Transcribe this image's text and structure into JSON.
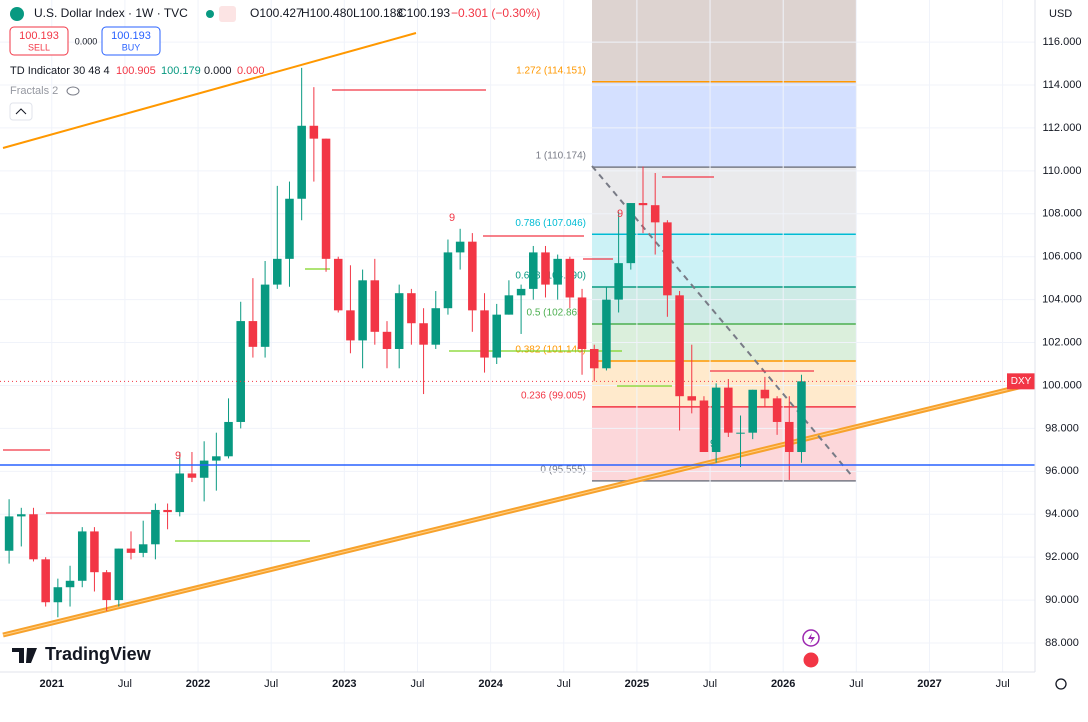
{
  "header": {
    "symbol": "U.S. Dollar Index · 1W · TVC",
    "ohlc": [
      "O100.427",
      "H100.480",
      "L100.188",
      "C100.193",
      "−0.301 (−0.30%)"
    ],
    "sell_price": "100.193",
    "sell_label": "SELL",
    "spread": "0.000",
    "buy_price": "100.193",
    "buy_label": "BUY",
    "indicator": "TD Indicator 30 48 4",
    "indicator_values": [
      "100.905",
      "100.179",
      "0.000",
      "0.000"
    ],
    "fractals": "Fractals 2",
    "watermark": "TradingView"
  },
  "chart_data": {
    "type": "candlestick",
    "currency": "USD",
    "up_color": "#089981",
    "down_color": "#f23645",
    "grid": true,
    "grid_color": "#f0f3fa",
    "x": [
      "2020-09",
      "2020-10",
      "2020-11",
      "2020-12",
      "2021-01",
      "2021-02",
      "2021-03",
      "2021-04",
      "2021-05",
      "2021-06",
      "2021-07",
      "2021-08",
      "2021-09",
      "2021-10",
      "2021-11",
      "2021-12",
      "2022-01",
      "2022-02",
      "2022-03",
      "2022-04",
      "2022-05",
      "2022-06",
      "2022-07",
      "2022-08",
      "2022-09",
      "2022-10",
      "2022-11",
      "2022-12",
      "2023-01",
      "2023-02",
      "2023-03",
      "2023-04",
      "2023-05",
      "2023-06",
      "2023-07",
      "2023-08",
      "2023-09",
      "2023-10",
      "2023-11",
      "2023-12",
      "2024-01",
      "2024-02",
      "2024-03",
      "2024-04",
      "2024-05",
      "2024-06",
      "2024-07",
      "2024-08",
      "2024-09",
      "2024-10",
      "2024-11",
      "2024-12",
      "2025-01",
      "2025-02",
      "2025-03",
      "2025-04",
      "2025-05",
      "2025-06",
      "2025-07",
      "2025-08",
      "2025-09",
      "2025-10",
      "2025-11",
      "2025-12",
      "2026-01",
      "2026-02"
    ],
    "open": [
      92.3,
      93.9,
      94.0,
      91.9,
      89.9,
      90.6,
      90.9,
      93.2,
      91.3,
      90.0,
      92.4,
      92.2,
      92.6,
      94.2,
      94.1,
      95.9,
      95.7,
      96.5,
      96.7,
      98.3,
      103.0,
      101.8,
      104.7,
      105.9,
      108.7,
      112.1,
      111.5,
      105.9,
      103.5,
      102.1,
      104.9,
      102.5,
      101.7,
      104.3,
      102.9,
      101.9,
      103.6,
      106.2,
      106.7,
      103.5,
      101.3,
      103.3,
      104.2,
      104.5,
      106.2,
      104.7,
      105.9,
      104.1,
      101.7,
      100.8,
      104.0,
      105.7,
      108.5,
      108.4,
      107.6,
      104.2,
      99.5,
      99.3,
      96.9,
      99.9,
      97.8,
      97.8,
      99.8,
      99.4,
      98.3,
      96.9
    ],
    "high": [
      94.7,
      94.3,
      94.3,
      92.0,
      91.0,
      91.6,
      93.4,
      93.4,
      91.4,
      92.4,
      93.2,
      93.7,
      94.5,
      94.5,
      96.9,
      96.9,
      97.4,
      97.8,
      99.4,
      103.9,
      105.0,
      105.8,
      109.3,
      109.5,
      114.8,
      113.9,
      111.5,
      106.0,
      105.6,
      105.4,
      105.9,
      103.0,
      104.7,
      104.5,
      103.6,
      104.4,
      106.8,
      107.3,
      107.1,
      104.3,
      103.8,
      104.9,
      104.7,
      106.5,
      106.5,
      106.1,
      106.0,
      104.5,
      101.9,
      104.6,
      108.1,
      108.5,
      110.2,
      109.9,
      107.7,
      104.4,
      101.9,
      99.5,
      100.1,
      100.3,
      98.6,
      99.8,
      100.4,
      99.5,
      99.5,
      100.5
    ],
    "low": [
      91.7,
      92.5,
      91.8,
      89.7,
      89.2,
      89.7,
      90.6,
      90.4,
      89.5,
      89.7,
      91.9,
      92.0,
      91.9,
      93.3,
      93.9,
      95.5,
      94.6,
      95.1,
      96.6,
      98.0,
      101.3,
      101.3,
      104.5,
      104.6,
      107.7,
      109.5,
      105.3,
      103.4,
      101.5,
      100.8,
      101.9,
      100.8,
      100.8,
      101.9,
      99.6,
      101.7,
      103.3,
      105.4,
      102.5,
      100.6,
      101.0,
      103.3,
      102.4,
      104.0,
      104.1,
      104.0,
      103.6,
      100.5,
      100.2,
      100.7,
      103.4,
      105.4,
      107.1,
      106.1,
      103.2,
      97.9,
      98.7,
      96.9,
      96.4,
      97.6,
      96.2,
      97.5,
      99.0,
      97.7,
      95.6,
      96.4
    ],
    "close": [
      93.9,
      94.0,
      91.9,
      89.9,
      90.6,
      90.9,
      93.2,
      91.3,
      90.0,
      92.4,
      92.2,
      92.6,
      94.2,
      94.1,
      95.9,
      95.7,
      96.5,
      96.7,
      98.3,
      103.0,
      101.8,
      104.7,
      105.9,
      108.7,
      112.1,
      111.5,
      105.9,
      103.5,
      102.1,
      104.9,
      102.5,
      101.7,
      104.3,
      102.9,
      101.9,
      103.6,
      106.2,
      106.7,
      103.5,
      101.3,
      103.3,
      104.2,
      104.5,
      106.2,
      104.7,
      105.9,
      104.1,
      101.7,
      100.8,
      104.0,
      105.7,
      108.5,
      108.4,
      107.6,
      104.2,
      99.5,
      99.3,
      96.9,
      99.9,
      97.8,
      97.8,
      99.8,
      99.4,
      98.3,
      96.9,
      100.193
    ],
    "xlim": [
      "2020-09",
      "2027-09"
    ],
    "xticks": [
      {
        "value": "2021-01",
        "label": "2021"
      },
      {
        "value": "2021-07",
        "label": "Jul"
      },
      {
        "value": "2022-01",
        "label": "2022"
      },
      {
        "value": "2022-07",
        "label": "Jul"
      },
      {
        "value": "2023-01",
        "label": "2023"
      },
      {
        "value": "2023-07",
        "label": "Jul"
      },
      {
        "value": "2024-01",
        "label": "2024"
      },
      {
        "value": "2024-07",
        "label": "Jul"
      },
      {
        "value": "2025-01",
        "label": "2025"
      },
      {
        "value": "2025-07",
        "label": "Jul"
      },
      {
        "value": "2026-01",
        "label": "2026"
      },
      {
        "value": "2026-07",
        "label": "Jul"
      },
      {
        "value": "2027-01",
        "label": "2027"
      },
      {
        "value": "2027-07",
        "label": "Jul"
      }
    ],
    "ylim": [
      86.65,
      117.96
    ],
    "yticks": [
      {
        "value": 88,
        "label": "88.000"
      },
      {
        "value": 90,
        "label": "90.000"
      },
      {
        "value": 92,
        "label": "92.000"
      },
      {
        "value": 94,
        "label": "94.000"
      },
      {
        "value": 96,
        "label": "96.000"
      },
      {
        "value": 98,
        "label": "98.000"
      },
      {
        "value": 100,
        "label": "100.000"
      },
      {
        "value": 102,
        "label": "102.000"
      },
      {
        "value": 104,
        "label": "104.000"
      },
      {
        "value": 106,
        "label": "106.000"
      },
      {
        "value": 108,
        "label": "108.000"
      },
      {
        "value": 110,
        "label": "110.000"
      },
      {
        "value": 112,
        "label": "112.000"
      },
      {
        "value": 114,
        "label": "114.000"
      },
      {
        "value": 116,
        "label": "116.000"
      }
    ],
    "price_line": {
      "name": "DXY",
      "value": 100.193,
      "color": "#f23645"
    },
    "horizontal_line": {
      "value": 96.294,
      "color": "#2962ff"
    },
    "fib": {
      "top_fill": "#8d6e63",
      "levels": [
        {
          "value": 114.151,
          "label": "1.272 (114.151)",
          "color": "#ff9800",
          "fill": "#2962ff"
        },
        {
          "value": 110.174,
          "label": "1 (110.174)",
          "color": "#787b86",
          "fill": "#9598a1"
        },
        {
          "value": 107.046,
          "label": "0.786 (107.046)",
          "color": "#00bcd4",
          "fill": "#00bcd4"
        },
        {
          "value": 104.59,
          "label": "0.618 (104.590)",
          "color": "#089981",
          "fill": "#089981"
        },
        {
          "value": 102.865,
          "label": "0.5 (102.865)",
          "color": "#4caf50",
          "fill": "#4caf50"
        },
        {
          "value": 101.14,
          "label": "0.382 (101.140)",
          "color": "#ff9800",
          "fill": "#ff9800"
        },
        {
          "value": 99.005,
          "label": "0.236 (99.005)",
          "color": "#f23645",
          "fill": "#f23645"
        },
        {
          "value": 95.555,
          "label": "0 (95.555)",
          "color": "#787b86"
        }
      ]
    },
    "td_labels": [
      "9",
      "9",
      "9",
      "9"
    ]
  }
}
